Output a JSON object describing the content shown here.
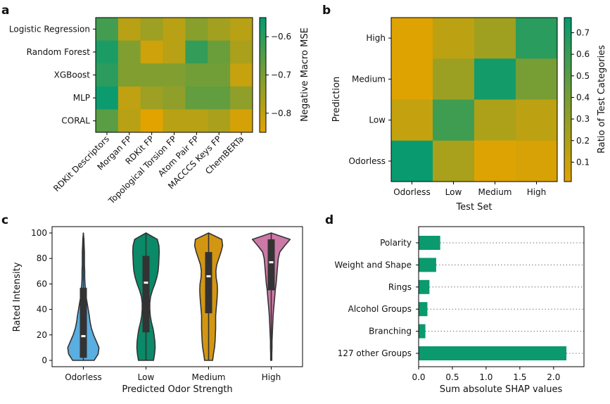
{
  "chart_data": [
    {
      "type": "heatmap",
      "panel_label": "a",
      "rows": [
        "Logistic Regression",
        "Random Forest",
        "XGBoost",
        "MLP",
        "CORAL"
      ],
      "columns": [
        "RDKit Descriptors",
        "Morgan FP",
        "RDKit FP",
        "Topological Torsion FP",
        "Atom Pair FP",
        "MACCCS Keys FP",
        "ChemBERTa"
      ],
      "values": [
        [
          -0.63,
          -0.79,
          -0.75,
          -0.79,
          -0.72,
          -0.76,
          -0.79
        ],
        [
          -0.58,
          -0.71,
          -0.82,
          -0.79,
          -0.61,
          -0.68,
          -0.77
        ],
        [
          -0.6,
          -0.71,
          -0.71,
          -0.71,
          -0.69,
          -0.69,
          -0.81
        ],
        [
          -0.56,
          -0.8,
          -0.75,
          -0.73,
          -0.67,
          -0.67,
          -0.73
        ],
        [
          -0.66,
          -0.79,
          -0.85,
          -0.79,
          -0.79,
          -0.77,
          -0.83
        ]
      ],
      "colorbar": {
        "label": "Negative Macro MSE",
        "range": [
          -0.85,
          -0.55
        ],
        "ticks": [
          "-0.6",
          "-0.7",
          "-0.8"
        ]
      },
      "colormap": {
        "low": "#e2a300",
        "mid": "#7a9e33",
        "high": "#039b72"
      }
    },
    {
      "type": "heatmap",
      "panel_label": "b",
      "title": "",
      "xlabel": "Test Set",
      "ylabel": "Prediction",
      "rows": [
        "High",
        "Medium",
        "Low",
        "Odorless"
      ],
      "columns": [
        "Odorless",
        "Low",
        "Medium",
        "High"
      ],
      "values": [
        [
          0.02,
          0.15,
          0.25,
          0.65
        ],
        [
          0.02,
          0.27,
          0.72,
          0.4
        ],
        [
          0.12,
          0.58,
          0.2,
          0.15
        ],
        [
          0.75,
          0.22,
          0.03,
          0.05
        ]
      ],
      "colorbar": {
        "label": "Ratio of Test Categories",
        "range": [
          0.01,
          0.77
        ],
        "ticks": [
          "0.1",
          "0.2",
          "0.3",
          "0.4",
          "0.5",
          "0.6",
          "0.7"
        ]
      },
      "colormap": {
        "low": "#e2a300",
        "mid": "#7a9e33",
        "high": "#039b72"
      }
    },
    {
      "type": "violin",
      "panel_label": "c",
      "xlabel": "Predicted Odor Strength",
      "ylabel": "Rated Intensity",
      "ylim": [
        0,
        100
      ],
      "yticks": [
        "0",
        "20",
        "40",
        "60",
        "80",
        "100"
      ],
      "categories": [
        "Odorless",
        "Low",
        "Medium",
        "High"
      ],
      "colors": [
        "#5aaee0",
        "#0a8a68",
        "#d39612",
        "#cc79a7"
      ],
      "stats": [
        {
          "q1": 2,
          "median": 19,
          "q3": 57,
          "whisker_low": 0,
          "whisker_high": 100
        },
        {
          "q1": 22,
          "median": 61,
          "q3": 82,
          "whisker_low": 0,
          "whisker_high": 100
        },
        {
          "q1": 37,
          "median": 66,
          "q3": 85,
          "whisker_low": 0,
          "whisker_high": 100
        },
        {
          "q1": 55,
          "median": 77,
          "q3": 95,
          "whisker_low": 5,
          "whisker_high": 100
        }
      ],
      "density_halfwidth_fraction": [
        [
          0.4,
          0.55,
          0.58,
          0.48,
          0.38,
          0.3,
          0.25,
          0.22,
          0.18,
          0.14,
          0.1,
          0.08,
          0.06,
          0.05,
          0.05,
          0.04,
          0.04,
          0.04,
          0.03,
          0.02,
          0.0
        ],
        [
          0.28,
          0.32,
          0.34,
          0.33,
          0.3,
          0.26,
          0.2,
          0.16,
          0.14,
          0.14,
          0.17,
          0.24,
          0.33,
          0.4,
          0.45,
          0.47,
          0.48,
          0.49,
          0.48,
          0.42,
          0.0
        ],
        [
          0.15,
          0.18,
          0.22,
          0.24,
          0.25,
          0.26,
          0.26,
          0.26,
          0.28,
          0.3,
          0.32,
          0.33,
          0.32,
          0.28,
          0.27,
          0.3,
          0.38,
          0.46,
          0.52,
          0.49,
          0.0
        ],
        [
          0.02,
          0.02,
          0.03,
          0.03,
          0.04,
          0.05,
          0.06,
          0.07,
          0.09,
          0.11,
          0.13,
          0.15,
          0.18,
          0.2,
          0.22,
          0.24,
          0.26,
          0.32,
          0.5,
          0.7,
          0.0
        ]
      ]
    },
    {
      "type": "bar",
      "orientation": "horizontal",
      "panel_label": "d",
      "xlabel": "Sum absolute SHAP values",
      "categories": [
        "Polarity",
        "Weight and Shape",
        "Rings",
        "Alcohol Groups",
        "Branching",
        "127 other Groups"
      ],
      "values": [
        0.32,
        0.26,
        0.16,
        0.13,
        0.1,
        2.19
      ],
      "xlim": [
        0,
        2.45
      ],
      "xticks": [
        "0.0",
        "0.5",
        "1.0",
        "1.5",
        "2.0"
      ],
      "color": "#0a9a6e"
    }
  ]
}
